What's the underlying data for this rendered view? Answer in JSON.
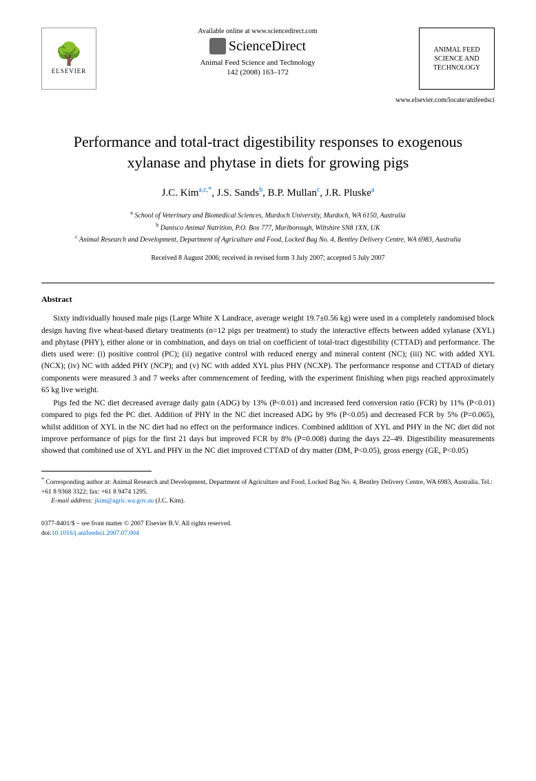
{
  "header": {
    "elsevier_label": "ELSEVIER",
    "available_text": "Available online at www.sciencedirect.com",
    "sciencedirect_label": "ScienceDirect",
    "journal_name": "Animal Feed Science and Technology",
    "journal_issue": "142 (2008) 163–172",
    "right_box_line1": "ANIMAL FEED",
    "right_box_line2": "SCIENCE AND",
    "right_box_line3": "TECHNOLOGY",
    "locate_url": "www.elsevier.com/locate/anifeedsci"
  },
  "title": "Performance and total-tract digestibility responses to exogenous xylanase and phytase in diets for growing pigs",
  "authors": [
    {
      "name": "J.C. Kim",
      "affil": "a,c,",
      "corr": "*"
    },
    {
      "name": "J.S. Sands",
      "affil": "b",
      "corr": ""
    },
    {
      "name": "B.P. Mullan",
      "affil": "c",
      "corr": ""
    },
    {
      "name": "J.R. Pluske",
      "affil": "a",
      "corr": ""
    }
  ],
  "affiliations": {
    "a": "School of Veterinary and Biomedical Sciences, Murdoch University, Murdoch, WA 6150, Australia",
    "b": "Danisco Animal Nutrition, P.O. Box 777, Marlborough, Wiltshire SN8 1XN, UK",
    "c": "Animal Research and Development, Department of Agriculture and Food, Locked Bag No. 4, Bentley Delivery Centre, WA 6983, Australia"
  },
  "dates": "Received 8 August 2006; received in revised form 3 July 2007; accepted 5 July 2007",
  "abstract": {
    "heading": "Abstract",
    "para1": "Sixty individually housed male pigs (Large White X Landrace, average weight 19.7±0.56 kg) were used in a completely randomised block design having five wheat-based dietary treatments (n=12 pigs per treatment) to study the interactive effects between added xylanase (XYL) and phytase (PHY), either alone or in combination, and days on trial on coefficient of total-tract digestibility (CTTAD) and performance. The diets used were: (i) positive control (PC); (ii) negative control with reduced energy and mineral content (NC); (iii) NC with added XYL (NCX); (iv) NC with added PHY (NCP); and (v) NC with added XYL plus PHY (NCXP). The performance response and CTTAD of dietary components were measured 3 and 7 weeks after commencement of feeding, with the experiment finishing when pigs reached approximately 65 kg live weight.",
    "para2": "Pigs fed the NC diet decreased average daily gain (ADG) by 13% (P<0.01) and increased feed conversion ratio (FCR) by 11% (P<0.01) compared to pigs fed the PC diet. Addition of PHY in the NC diet increased ADG by 9% (P<0.05) and decreased FCR by 5% (P=0.065), whilst addition of XYL in the NC diet had no effect on the performance indices. Combined addition of XYL and PHY in the NC diet did not improve performance of pigs for the first 21 days but improved FCR by 8% (P=0.008) during the days 22–49. Digestibility measurements showed that combined use of XYL and PHY in the NC diet improved CTTAD of dry matter (DM, P<0.05), gross energy (GE, P<0.05)"
  },
  "footnote": {
    "corr_text": "Corresponding author at: Animal Research and Development, Department of Agriculture and Food, Locked Bag No. 4, Bentley Delivery Centre, WA 6983, Australia. Tel.: +61 8 9368 3322; fax: +61 8 9474 1295.",
    "email_label": "E-mail address:",
    "email": "jkim@agric.wa.gov.au",
    "email_author": "(J.C. Kim)."
  },
  "bottom": {
    "copyright": "0377-8401/$ – see front matter © 2007 Elsevier B.V. All rights reserved.",
    "doi_prefix": "doi:",
    "doi": "10.1016/j.anifeedsci.2007.07.004"
  },
  "colors": {
    "link": "#0066cc",
    "text": "#000000",
    "background": "#ffffff"
  }
}
